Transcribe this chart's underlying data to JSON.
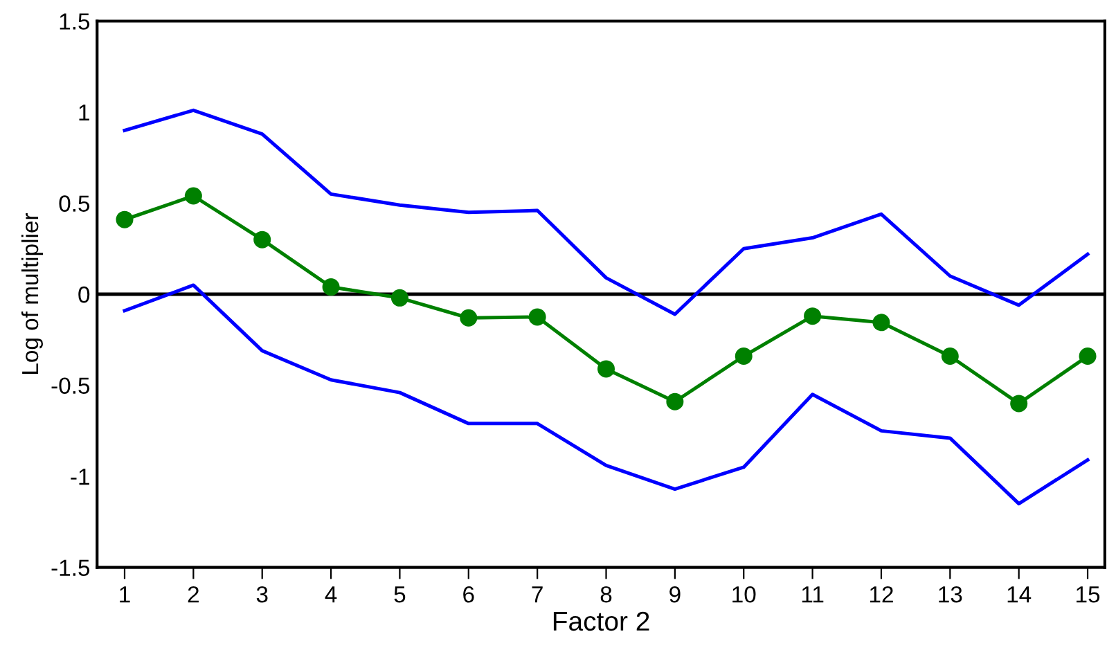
{
  "chart_data": {
    "type": "line",
    "xlabel": "Factor 2",
    "ylabel": "Log of multiplier",
    "x": [
      1,
      2,
      3,
      4,
      5,
      6,
      7,
      8,
      9,
      10,
      11,
      12,
      13,
      14,
      15
    ],
    "series": [
      {
        "color": "#0000ff",
        "marker": "none",
        "values": [
          0.9,
          1.01,
          0.88,
          0.55,
          0.49,
          0.45,
          0.46,
          0.09,
          -0.11,
          0.25,
          0.31,
          0.44,
          0.1,
          -0.06,
          0.22
        ]
      },
      {
        "color": "#008000",
        "marker": "circle",
        "values": [
          0.41,
          0.54,
          0.3,
          0.04,
          -0.02,
          -0.13,
          -0.125,
          -0.41,
          -0.59,
          -0.34,
          -0.12,
          -0.155,
          -0.34,
          -0.6,
          -0.34
        ]
      },
      {
        "color": "#0000ff",
        "marker": "none",
        "values": [
          -0.09,
          0.05,
          -0.31,
          -0.47,
          -0.54,
          -0.71,
          -0.71,
          -0.94,
          -1.07,
          -0.95,
          -0.55,
          -0.75,
          -0.79,
          -1.15,
          -0.91
        ]
      }
    ],
    "xlim": [
      0.6,
      15.25
    ],
    "xticks": [
      1,
      2,
      3,
      4,
      5,
      6,
      7,
      8,
      9,
      10,
      11,
      12,
      13,
      14,
      15
    ],
    "ylim": [
      -1.5,
      1.5
    ],
    "yticks": [
      {
        "value": -1.5,
        "label": "-1.5"
      },
      {
        "value": -1,
        "label": "-1"
      },
      {
        "value": -0.5,
        "label": "-0.5"
      },
      0,
      0.5,
      1,
      1.5
    ],
    "ref_lines": [
      {
        "axis": "y",
        "value": 0,
        "color": "#000000"
      }
    ],
    "grid": false,
    "legend": false
  }
}
